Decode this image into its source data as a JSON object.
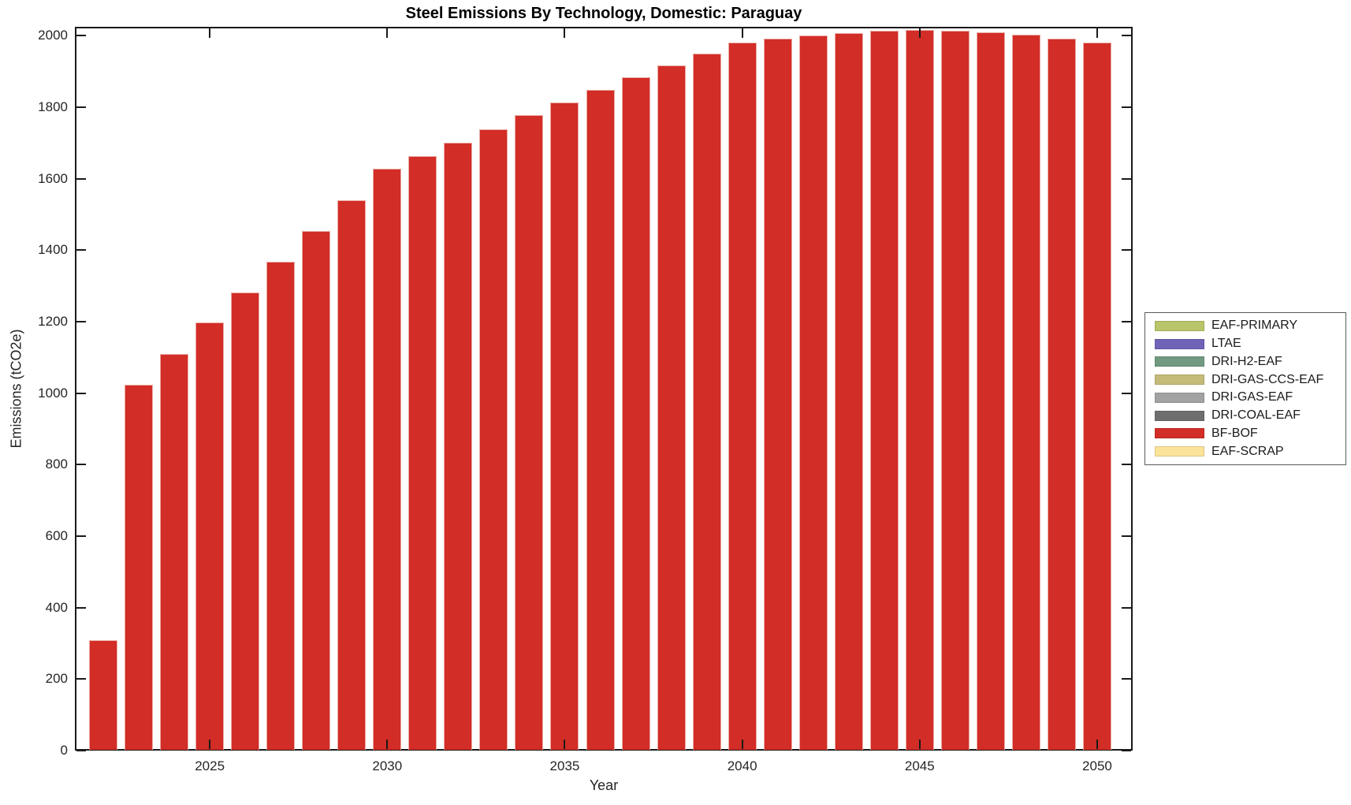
{
  "title": "Steel Emissions By Technology, Domestic: Paraguay",
  "axes": {
    "xlabel": "Year",
    "ylabel": "Emissions (tCO2e)",
    "xtick_labels": [
      "2025",
      "2030",
      "2035",
      "2040",
      "2045",
      "2050"
    ],
    "ytick_labels": [
      "0",
      "200",
      "400",
      "600",
      "800",
      "1000",
      "1200",
      "1400",
      "1600",
      "1800",
      "2000"
    ]
  },
  "legend": {
    "entries": [
      {
        "label": "EAF-PRIMARY",
        "color": "#b9c568"
      },
      {
        "label": "LTAE",
        "color": "#6f63b8"
      },
      {
        "label": "DRI-H2-EAF",
        "color": "#719a80"
      },
      {
        "label": "DRI-GAS-CCS-EAF",
        "color": "#c5bb78"
      },
      {
        "label": "DRI-GAS-EAF",
        "color": "#a2a2a2"
      },
      {
        "label": "DRI-COAL-EAF",
        "color": "#6e6e6e"
      },
      {
        "label": "BF-BOF",
        "color": "#d22d26"
      },
      {
        "label": "EAF-SCRAP",
        "color": "#fbe39a"
      }
    ]
  },
  "colors": {
    "bar_fill": "#d22d26",
    "bar_edge": "#eaaaa3",
    "axis_line": "#1a1a1a",
    "text": "#262626"
  },
  "chart_data": {
    "type": "bar",
    "title": "Steel Emissions By Technology, Domestic: Paraguay",
    "xlabel": "Year",
    "ylabel": "Emissions (tCO2e)",
    "x": [
      2022,
      2023,
      2024,
      2025,
      2026,
      2027,
      2028,
      2029,
      2030,
      2031,
      2032,
      2033,
      2034,
      2035,
      2036,
      2037,
      2038,
      2039,
      2040,
      2041,
      2042,
      2043,
      2044,
      2045,
      2046,
      2047,
      2048,
      2049,
      2050
    ],
    "series": [
      {
        "name": "BF-BOF",
        "color": "#d22d26",
        "values": [
          308,
          1024,
          1110,
          1197,
          1282,
          1368,
          1454,
          1540,
          1627,
          1664,
          1701,
          1739,
          1777,
          1813,
          1849,
          1884,
          1918,
          1950,
          1981,
          1993,
          2001,
          2008,
          2014,
          2016,
          2014,
          2010,
          2004,
          1993,
          1982
        ]
      }
    ],
    "xticks": [
      2025,
      2030,
      2035,
      2040,
      2045,
      2050
    ],
    "yticks": [
      0,
      200,
      400,
      600,
      800,
      1000,
      1200,
      1400,
      1600,
      1800,
      2000
    ],
    "xlim": [
      2021.2,
      2051.0
    ],
    "ylim": [
      0,
      2025
    ],
    "grid": false,
    "bar_width_years": 0.8,
    "legend_position": "right-outside",
    "legend_entries": [
      "EAF-PRIMARY",
      "LTAE",
      "DRI-H2-EAF",
      "DRI-GAS-CCS-EAF",
      "DRI-GAS-EAF",
      "DRI-COAL-EAF",
      "BF-BOF",
      "EAF-SCRAP"
    ]
  }
}
